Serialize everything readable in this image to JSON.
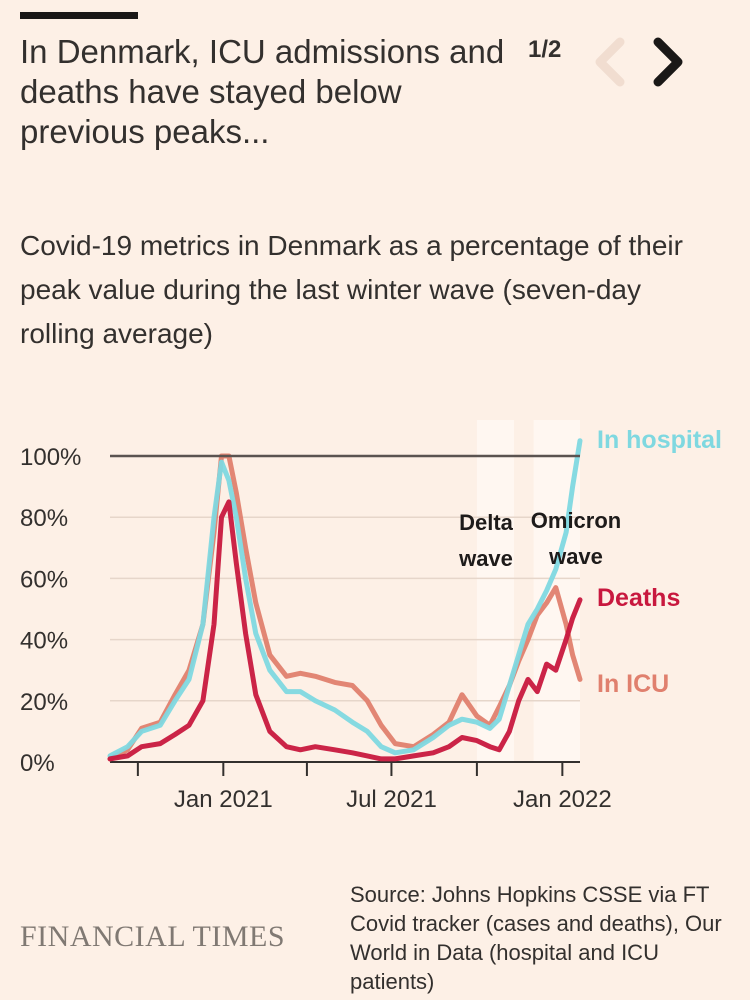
{
  "headline": "In Denmark, ICU admissions and deaths have stayed below previous peaks...",
  "pager": {
    "label": "1/2",
    "prev_icon": "chevron-left-icon",
    "next_icon": "chevron-right-icon"
  },
  "colors": {
    "background": "#fdf0e6",
    "hospital": "#7fd8e0",
    "icu": "#e0806e",
    "deaths": "#c8183e",
    "reference_line": "#5a5350",
    "wave_band": "#fff8f2",
    "brand": "#807973"
  },
  "chart_data": {
    "type": "line",
    "subtitle": "Covid-19 metrics in Denmark as a percentage of their peak value during the last winter wave (seven-day rolling average)",
    "x_ticks": [
      {
        "date": "2020-10-01",
        "label": ""
      },
      {
        "date": "2021-01-01",
        "label": "Jan 2021"
      },
      {
        "date": "2021-04-01",
        "label": ""
      },
      {
        "date": "2021-07-01",
        "label": "Jul 2021"
      },
      {
        "date": "2021-10-01",
        "label": ""
      },
      {
        "date": "2022-01-01",
        "label": "Jan 2022"
      }
    ],
    "xlim": [
      "2020-09-01",
      "2022-01-20"
    ],
    "ylim": [
      0,
      100
    ],
    "y_ticks": [
      {
        "value": 0,
        "label": "0%"
      },
      {
        "value": 20,
        "label": "20%"
      },
      {
        "value": 40,
        "label": "40%"
      },
      {
        "value": 60,
        "label": "60%"
      },
      {
        "value": 80,
        "label": "80%"
      },
      {
        "value": 100,
        "label": "100%"
      }
    ],
    "reference_line": 100,
    "annotations": [
      {
        "lines": [
          "Delta",
          "wave"
        ],
        "start": "2021-10-01",
        "end": "2021-11-10"
      },
      {
        "lines": [
          "Omicron",
          "wave"
        ],
        "start": "2021-12-01",
        "end": "2022-01-20"
      }
    ],
    "series": [
      {
        "name": "In hospital",
        "key": "hospital",
        "points": [
          [
            "2020-09-01",
            2
          ],
          [
            "2020-09-20",
            5
          ],
          [
            "2020-10-05",
            10
          ],
          [
            "2020-10-25",
            12
          ],
          [
            "2020-11-10",
            20
          ],
          [
            "2020-11-25",
            27
          ],
          [
            "2020-12-10",
            45
          ],
          [
            "2020-12-22",
            80
          ],
          [
            "2020-12-30",
            98
          ],
          [
            "2021-01-07",
            92
          ],
          [
            "2021-01-15",
            80
          ],
          [
            "2021-01-25",
            60
          ],
          [
            "2021-02-05",
            42
          ],
          [
            "2021-02-20",
            30
          ],
          [
            "2021-03-10",
            23
          ],
          [
            "2021-03-25",
            23
          ],
          [
            "2021-04-10",
            20
          ],
          [
            "2021-05-01",
            17
          ],
          [
            "2021-05-20",
            13
          ],
          [
            "2021-06-05",
            10
          ],
          [
            "2021-06-20",
            5
          ],
          [
            "2021-07-05",
            3
          ],
          [
            "2021-07-25",
            4
          ],
          [
            "2021-08-15",
            8
          ],
          [
            "2021-09-01",
            12
          ],
          [
            "2021-09-15",
            14
          ],
          [
            "2021-10-01",
            13
          ],
          [
            "2021-10-15",
            11
          ],
          [
            "2021-10-25",
            14
          ],
          [
            "2021-11-05",
            25
          ],
          [
            "2021-11-15",
            35
          ],
          [
            "2021-11-25",
            45
          ],
          [
            "2021-12-05",
            50
          ],
          [
            "2021-12-15",
            56
          ],
          [
            "2021-12-25",
            63
          ],
          [
            "2022-01-05",
            75
          ],
          [
            "2022-01-12",
            90
          ],
          [
            "2022-01-20",
            105
          ]
        ]
      },
      {
        "name": "In ICU",
        "key": "icu",
        "points": [
          [
            "2020-09-01",
            1
          ],
          [
            "2020-09-20",
            4
          ],
          [
            "2020-10-05",
            11
          ],
          [
            "2020-10-25",
            13
          ],
          [
            "2020-11-10",
            22
          ],
          [
            "2020-11-25",
            30
          ],
          [
            "2020-12-10",
            45
          ],
          [
            "2020-12-22",
            75
          ],
          [
            "2020-12-30",
            100
          ],
          [
            "2021-01-07",
            100
          ],
          [
            "2021-01-15",
            88
          ],
          [
            "2021-01-25",
            70
          ],
          [
            "2021-02-05",
            52
          ],
          [
            "2021-02-20",
            35
          ],
          [
            "2021-03-10",
            28
          ],
          [
            "2021-03-25",
            29
          ],
          [
            "2021-04-10",
            28
          ],
          [
            "2021-05-01",
            26
          ],
          [
            "2021-05-20",
            25
          ],
          [
            "2021-06-05",
            20
          ],
          [
            "2021-06-20",
            12
          ],
          [
            "2021-07-05",
            6
          ],
          [
            "2021-07-25",
            5
          ],
          [
            "2021-08-15",
            9
          ],
          [
            "2021-09-01",
            13
          ],
          [
            "2021-09-15",
            22
          ],
          [
            "2021-10-01",
            15
          ],
          [
            "2021-10-15",
            12
          ],
          [
            "2021-10-25",
            18
          ],
          [
            "2021-11-05",
            25
          ],
          [
            "2021-11-15",
            33
          ],
          [
            "2021-11-25",
            40
          ],
          [
            "2021-12-05",
            48
          ],
          [
            "2021-12-15",
            52
          ],
          [
            "2021-12-25",
            57
          ],
          [
            "2022-01-05",
            45
          ],
          [
            "2022-01-12",
            35
          ],
          [
            "2022-01-20",
            27
          ]
        ]
      },
      {
        "name": "Deaths",
        "key": "deaths",
        "points": [
          [
            "2020-09-01",
            1
          ],
          [
            "2020-09-20",
            2
          ],
          [
            "2020-10-05",
            5
          ],
          [
            "2020-10-25",
            6
          ],
          [
            "2020-11-10",
            9
          ],
          [
            "2020-11-25",
            12
          ],
          [
            "2020-12-10",
            20
          ],
          [
            "2020-12-22",
            45
          ],
          [
            "2020-12-30",
            80
          ],
          [
            "2021-01-07",
            85
          ],
          [
            "2021-01-15",
            65
          ],
          [
            "2021-01-25",
            42
          ],
          [
            "2021-02-05",
            22
          ],
          [
            "2021-02-20",
            10
          ],
          [
            "2021-03-10",
            5
          ],
          [
            "2021-03-25",
            4
          ],
          [
            "2021-04-10",
            5
          ],
          [
            "2021-05-01",
            4
          ],
          [
            "2021-05-20",
            3
          ],
          [
            "2021-06-05",
            2
          ],
          [
            "2021-06-20",
            1
          ],
          [
            "2021-07-05",
            1
          ],
          [
            "2021-07-25",
            2
          ],
          [
            "2021-08-15",
            3
          ],
          [
            "2021-09-01",
            5
          ],
          [
            "2021-09-15",
            8
          ],
          [
            "2021-10-01",
            7
          ],
          [
            "2021-10-15",
            5
          ],
          [
            "2021-10-25",
            4
          ],
          [
            "2021-11-05",
            10
          ],
          [
            "2021-11-15",
            20
          ],
          [
            "2021-11-25",
            27
          ],
          [
            "2021-12-05",
            23
          ],
          [
            "2021-12-15",
            32
          ],
          [
            "2021-12-25",
            30
          ],
          [
            "2022-01-05",
            40
          ],
          [
            "2022-01-12",
            47
          ],
          [
            "2022-01-20",
            53
          ]
        ]
      }
    ]
  },
  "source": "Source: Johns Hopkins CSSE via FT Covid tracker (cases and deaths), Our World in Data (hospital and ICU patients)",
  "brand": "FINANCIAL TIMES"
}
